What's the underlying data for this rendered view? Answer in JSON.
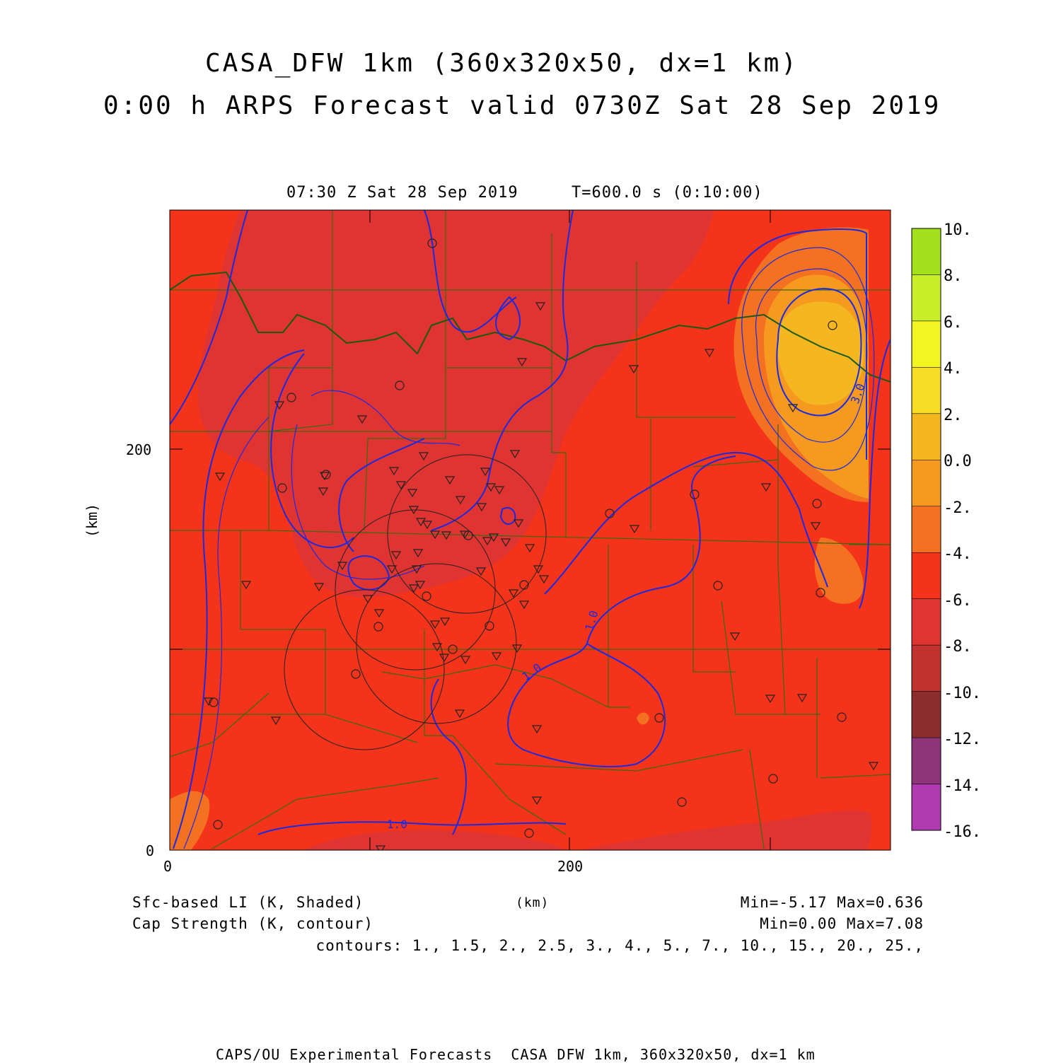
{
  "header": {
    "title_line1": "CASA_DFW 1km (360x320x50, dx=1 km)",
    "title_line2": "0:00 h ARPS Forecast valid 0730Z Sat 28 Sep 2019"
  },
  "panel": {
    "time_label": "07:30 Z Sat 28 Sep 2019",
    "model_time": "T=600.0 s (0:10:00)"
  },
  "axes": {
    "x_unit": "(km)",
    "y_unit": "(km)",
    "x_ticks": [
      "0",
      "200"
    ],
    "y_ticks": [
      "0",
      "200"
    ]
  },
  "colorbar": {
    "labels": [
      "10.",
      "8.",
      "6.",
      "4.",
      "2.",
      "0.0",
      "-2.",
      "-4.",
      "-6.",
      "-8.",
      "-10.",
      "-12.",
      "-14.",
      "-16."
    ],
    "colors": [
      "#a4e01c",
      "#c8ef2a",
      "#f2f522",
      "#f6dc25",
      "#f4b722",
      "#f59a1e",
      "#f47121",
      "#f4331b",
      "#e03433",
      "#c23330",
      "#8c2c2c",
      "#8c3578",
      "#b03ab0",
      "#d542d8"
    ]
  },
  "legend": {
    "field1": "Sfc-based LI (K, Shaded)",
    "field2": "Cap Strength (K, contour)",
    "units": "(km)",
    "minmax1": "Min=-5.17 Max=0.636",
    "minmax2": "Min=0.00 Max=7.08",
    "contours": "contours: 1., 1.5, 2., 2.5, 3., 4., 5., 7., 10., 15., 20., 25.,"
  },
  "contour_labels": [
    "1.0",
    "1.0",
    "1.0",
    "3.0"
  ],
  "footer": "CAPS/OU Experimental Forecasts  CASA DFW 1km, 360x320x50, dx=1 km",
  "map_colors": {
    "base": "#f4331b",
    "darker": "#e03433",
    "orange": "#f47121",
    "light_orange": "#f59a1e",
    "county_lines": "#3a6a10",
    "contour": "#1a2ae0",
    "dryline": "#1a5a10"
  }
}
